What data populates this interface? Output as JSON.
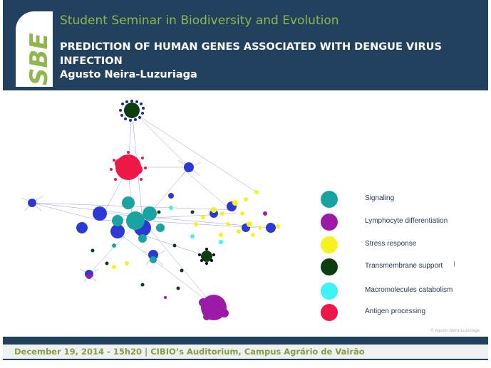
{
  "header": {
    "logo_text": "SBE",
    "seminar_name": "Student Seminar in Biodiversity and Evolution",
    "talk_title": "PREDICTION OF HUMAN GENES ASSOCIATED WITH DENGUE VIRUS INFECTION",
    "speaker": "Agusto Neira-Luzuriaga"
  },
  "legend": [
    {
      "label": "Signaling",
      "color": "#1aa3a3"
    },
    {
      "label": "Lymphocyte differentiation",
      "color": "#9b1aa8"
    },
    {
      "label": "Stress response",
      "color": "#f5f21f"
    },
    {
      "label": "Transmembrane support",
      "color": "#0f3d12"
    },
    {
      "label": "Macromolecules catabolism",
      "color": "#3ff2f7"
    },
    {
      "label": "Antigen processing",
      "color": "#ee1847"
    }
  ],
  "copyright": "© Agusto Neira-Luzuriaga",
  "footer": {
    "text": "December 19, 2014 - 15h20 | CIBIO’s Auditorium, Campus Agrário de Vairão"
  },
  "colors": {
    "header_bg": "#22415f",
    "accent_green": "#8fb74c",
    "footer_green": "#7ea03e"
  }
}
